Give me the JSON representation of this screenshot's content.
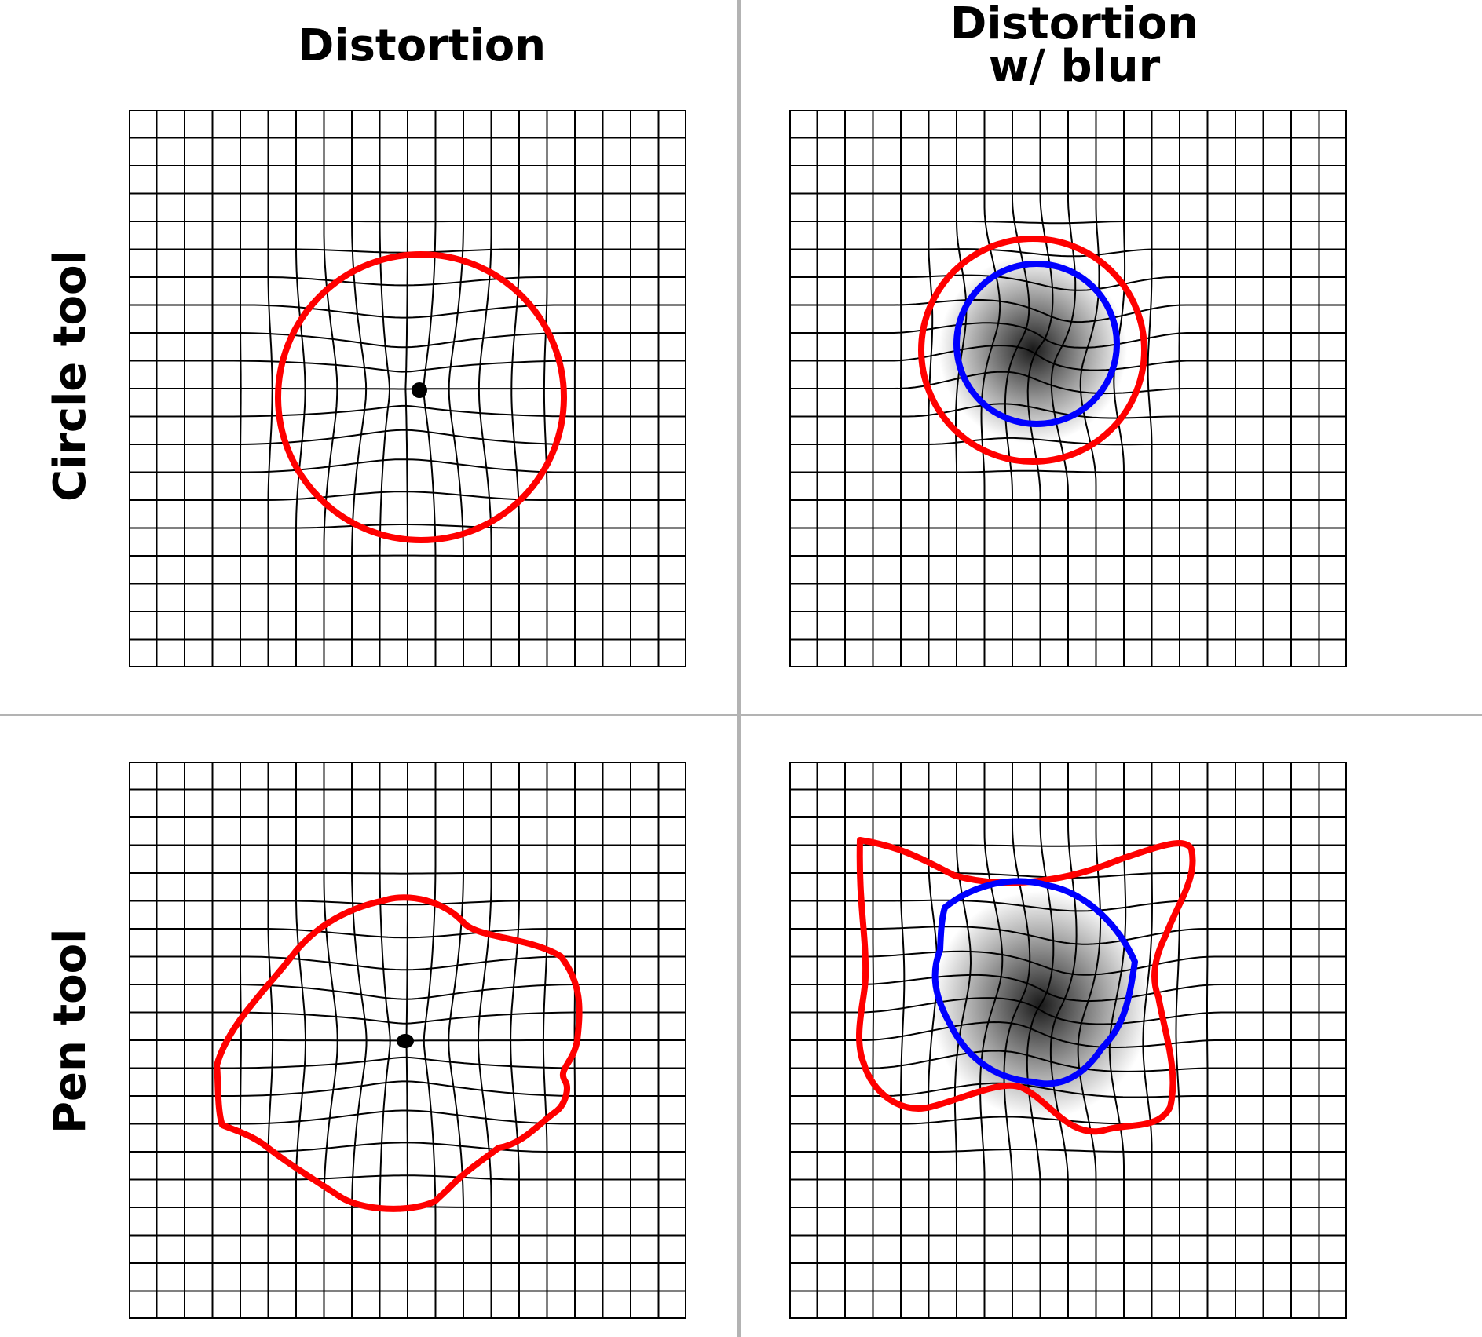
{
  "columns": [
    {
      "title": "Distortion"
    },
    {
      "title": "Distortion\nw/ blur"
    }
  ],
  "rows": [
    {
      "title": "Circle tool"
    },
    {
      "title": "Pen tool"
    }
  ],
  "colors": {
    "outer_outline": "#ff0000",
    "inner_outline": "#0000ff",
    "grid": "#000000",
    "divider": "#b3b3b3",
    "background": "#ffffff"
  }
}
